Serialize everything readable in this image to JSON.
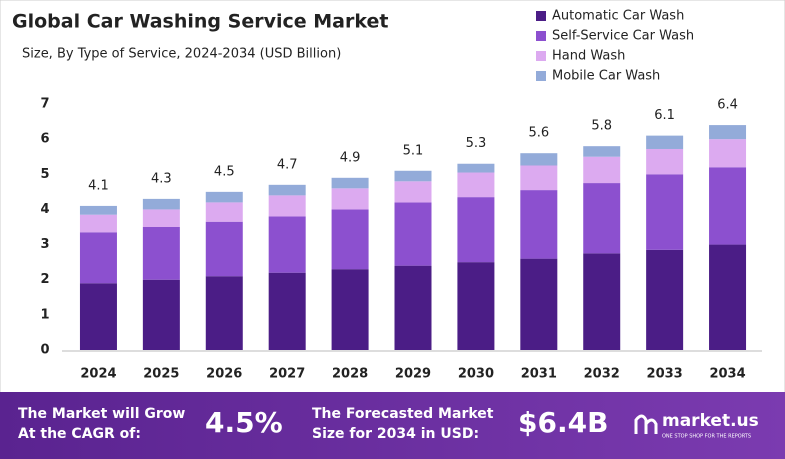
{
  "chart_data": {
    "type": "stacked-bar",
    "title": "Global Car Washing Service Market",
    "subtitle": "Size, By Type of Service, 2024-2034  (USD Billion)",
    "categories": [
      "2024",
      "2025",
      "2026",
      "2027",
      "2028",
      "2029",
      "2030",
      "2031",
      "2032",
      "2033",
      "2034"
    ],
    "series": [
      {
        "name": "Automatic Car Wash",
        "color": "#4b1d86",
        "values": [
          1.9,
          2.0,
          2.1,
          2.2,
          2.3,
          2.4,
          2.5,
          2.6,
          2.75,
          2.85,
          3.0
        ]
      },
      {
        "name": "Self-Service Car Wash",
        "color": "#8c50cf",
        "values": [
          1.45,
          1.5,
          1.55,
          1.6,
          1.7,
          1.8,
          1.85,
          1.95,
          2.0,
          2.15,
          2.2
        ]
      },
      {
        "name": "Hand Wash",
        "color": "#dcaaf0",
        "values": [
          0.5,
          0.5,
          0.55,
          0.6,
          0.6,
          0.6,
          0.7,
          0.7,
          0.75,
          0.72,
          0.8
        ]
      },
      {
        "name": "Mobile Car Wash",
        "color": "#93abd9",
        "values": [
          0.25,
          0.3,
          0.3,
          0.3,
          0.3,
          0.3,
          0.25,
          0.35,
          0.3,
          0.38,
          0.4
        ]
      }
    ],
    "totals": [
      4.1,
      4.3,
      4.5,
      4.7,
      4.9,
      5.1,
      5.3,
      5.6,
      5.8,
      6.1,
      6.4
    ],
    "ylim": [
      0,
      7
    ],
    "yticks": [
      0,
      1,
      2,
      3,
      4,
      5,
      6,
      7
    ],
    "grid": false,
    "legend": "top-right"
  },
  "footer": {
    "cagr_text": [
      "The Market will Grow",
      "At the CAGR of:"
    ],
    "cagr": "4.5%",
    "forecast_text": [
      "The Forecasted Market",
      "Size for 2034 in USD:"
    ],
    "forecast": "$6.4B",
    "brand": "market.us",
    "tagline": "ONE STOP SHOP FOR THE REPORTS"
  }
}
